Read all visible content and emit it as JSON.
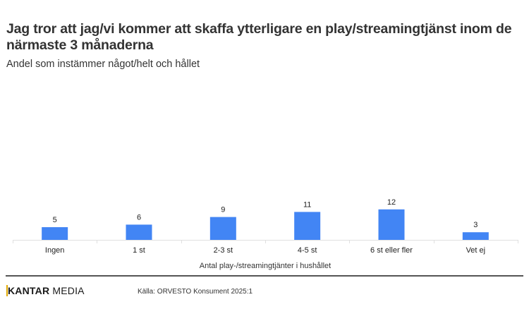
{
  "header": {
    "title": "Jag tror att jag/vi kommer att skaffa ytterligare en play/streamingtjänst inom de närmaste 3 månaderna",
    "subtitle": "Andel som instämmer något/helt och hållet"
  },
  "footer": {
    "logo_bold": "KANTAR",
    "logo_light": " MEDIA",
    "source": "Källa: ORVESTO Konsument 2025:1"
  },
  "colors": {
    "bar": "#4285f4",
    "axis": "#e0e0e0",
    "text": "#333333"
  },
  "chart_data": {
    "type": "bar",
    "title": "Jag tror att jag/vi kommer att skaffa ytterligare en play/streamingtjänst inom de närmaste 3 månaderna",
    "subtitle": "Andel som instämmer något/helt och hållet",
    "xlabel": "Antal play-/streamingtjänter i hushållet",
    "ylabel": "",
    "categories": [
      "Ingen",
      "1 st",
      "2-3 st",
      "4-5 st",
      "6 st eller fler",
      "Vet ej"
    ],
    "values": [
      5,
      6,
      9,
      11,
      12,
      3
    ],
    "data_labels": [
      "5",
      "6",
      "9",
      "11",
      "12",
      "3"
    ],
    "ylim": [
      0,
      80
    ],
    "grid": false,
    "legend": "none"
  }
}
